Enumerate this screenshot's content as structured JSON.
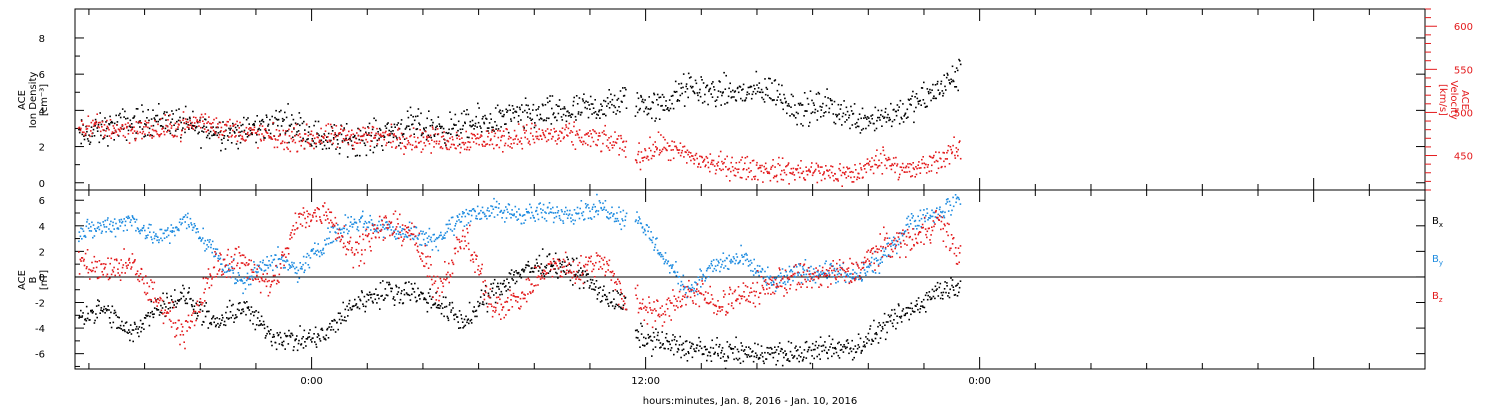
{
  "chart_data": [
    {
      "type": "scatter",
      "panel": "top",
      "ylabel": [
        "ACE",
        "Ion Density",
        "[cm⁻³]"
      ],
      "ylim": [
        -0.4,
        9.6
      ],
      "yticks": [
        0,
        2,
        4,
        6,
        8
      ],
      "y2label": [
        "ACE",
        "Velocity",
        "[km/s]"
      ],
      "y2lim": [
        410,
        620
      ],
      "y2ticks": [
        450,
        500,
        550,
        600
      ],
      "xlim": [
        -8.5,
        40.0
      ],
      "series": [
        {
          "color": "#000000",
          "axis": "left",
          "segments": [
            {
              "x": [
                -8.4,
                -7.0,
                -5.5,
                -4.0,
                -2.5,
                -1.0,
                0.5,
                2.0,
                3.5,
                5.0,
                6.5,
                8.0,
                9.5,
                11.0,
                11.3
              ],
              "y": [
                2.6,
                3.2,
                3.6,
                3.0,
                2.8,
                3.5,
                2.4,
                2.5,
                3.2,
                3.0,
                3.5,
                3.8,
                4.0,
                4.4,
                4.8
              ]
            },
            {
              "x": [
                11.6,
                12.5,
                13.5,
                14.5,
                15.5,
                16.5,
                17.5,
                18.5,
                19.5,
                20.5,
                21.5,
                22.5,
                23.3
              ],
              "y": [
                4.5,
                4.2,
                5.3,
                5.0,
                5.0,
                5.2,
                4.0,
                4.3,
                3.6,
                3.7,
                4.2,
                5.2,
                6.1
              ]
            }
          ]
        },
        {
          "color": "#e31a1c",
          "axis": "right",
          "segments": [
            {
              "x": [
                -8.4,
                -7.0,
                -5.5,
                -4.0,
                -2.5,
                -1.0,
                0.5,
                2.0,
                3.5,
                5.0,
                6.5,
                8.0,
                9.5,
                11.0,
                11.3
              ],
              "y": [
                485,
                482,
                480,
                490,
                478,
                470,
                472,
                474,
                470,
                468,
                470,
                475,
                473,
                465,
                462
              ]
            },
            {
              "x": [
                11.6,
                12.5,
                13.5,
                14.5,
                15.5,
                16.5,
                17.5,
                18.5,
                19.5,
                20.5,
                21.5,
                22.5,
                23.3
              ],
              "y": [
                448,
                462,
                450,
                440,
                436,
                434,
                432,
                431,
                429,
                448,
                432,
                445,
                460
              ]
            }
          ]
        }
      ]
    },
    {
      "type": "scatter",
      "panel": "bottom",
      "ylabel": [
        "ACE",
        "B",
        "[nT]"
      ],
      "ylim": [
        -7.2,
        6.8
      ],
      "yticks": [
        -6,
        -4,
        -2,
        0,
        2,
        4,
        6
      ],
      "zero_line": true,
      "xlim": [
        -8.5,
        40.0
      ],
      "x_tick_labels": [
        {
          "x": 0,
          "label": "0:00"
        },
        {
          "x": 12,
          "label": "12:00"
        },
        {
          "x": 24,
          "label": "0:00"
        }
      ],
      "xlabel": "hours:minutes, Jan.  8, 2016 - Jan. 10, 2016",
      "legend": [
        "B",
        "B",
        "B"
      ],
      "legend_sub": [
        "x",
        "y",
        "z"
      ],
      "series": [
        {
          "name": "Bx",
          "color": "#000000",
          "segments": [
            {
              "x": [
                -8.4,
                -7.5,
                -6.5,
                -5.5,
                -4.5,
                -3.5,
                -2.5,
                -1.5,
                -0.5,
                0.5,
                1.5,
                2.5,
                3.5,
                4.5,
                5.5,
                6.5,
                7.5,
                8.5,
                9.5,
                10.5,
                11.3
              ],
              "y": [
                -3.0,
                -2.5,
                -4.5,
                -2.0,
                -1.5,
                -3.8,
                -2.2,
                -4.5,
                -5.0,
                -4.5,
                -2.0,
                -1.2,
                -1.0,
                -2.0,
                -3.5,
                -1.0,
                0.5,
                1.2,
                0.5,
                -1.5,
                -2.2
              ]
            },
            {
              "x": [
                11.6,
                12.5,
                13.5,
                14.5,
                15.5,
                16.5,
                17.5,
                18.5,
                19.5,
                20.5,
                21.5,
                22.5,
                23.3
              ],
              "y": [
                -4.5,
                -5.0,
                -5.5,
                -5.8,
                -5.9,
                -5.9,
                -6.0,
                -5.5,
                -5.5,
                -4.0,
                -2.5,
                -1.0,
                -0.5
              ]
            }
          ]
        },
        {
          "name": "By",
          "color": "#1f8ce0",
          "segments": [
            {
              "x": [
                -8.4,
                -7.5,
                -6.5,
                -5.5,
                -4.5,
                -3.5,
                -2.5,
                -1.5,
                -0.5,
                0.5,
                1.5,
                2.5,
                3.5,
                4.5,
                5.5,
                6.5,
                7.5,
                8.5,
                9.5,
                10.5,
                11.3
              ],
              "y": [
                3.5,
                4.0,
                4.5,
                3.0,
                4.5,
                2.0,
                -0.5,
                1.5,
                0.5,
                3.0,
                4.5,
                4.0,
                3.5,
                3.0,
                5.0,
                5.2,
                5.0,
                5.0,
                5.2,
                5.5,
                4.5
              ]
            },
            {
              "x": [
                11.6,
                12.5,
                13.5,
                14.5,
                15.5,
                16.5,
                17.5,
                18.5,
                19.5,
                20.5,
                21.5,
                22.5,
                23.3
              ],
              "y": [
                5.0,
                2.0,
                -1.0,
                1.0,
                1.5,
                -0.5,
                0.5,
                0.5,
                0.0,
                1.5,
                4.5,
                5.0,
                6.5
              ]
            }
          ]
        },
        {
          "name": "Bz",
          "color": "#e31a1c",
          "segments": [
            {
              "x": [
                -8.4,
                -7.5,
                -6.5,
                -5.5,
                -4.5,
                -3.5,
                -2.5,
                -1.5,
                -0.5,
                0.5,
                1.5,
                2.5,
                3.5,
                4.5,
                5.5,
                6.5,
                7.5,
                8.5,
                9.5,
                10.5,
                11.3
              ],
              "y": [
                1.5,
                0.5,
                1.0,
                -2.0,
                -4.5,
                1.0,
                1.5,
                -1.0,
                4.5,
                5.2,
                2.0,
                4.0,
                3.8,
                -1.0,
                3.5,
                -2.5,
                -1.5,
                1.0,
                0.5,
                1.5,
                -2.5
              ]
            },
            {
              "x": [
                11.6,
                12.5,
                13.5,
                14.5,
                15.5,
                16.5,
                17.5,
                18.5,
                19.5,
                20.5,
                21.5,
                22.5,
                23.3
              ],
              "y": [
                -1.5,
                -3.0,
                -1.0,
                -2.0,
                -1.5,
                -0.5,
                0.0,
                0.2,
                0.5,
                2.5,
                3.0,
                4.5,
                1.5
              ]
            }
          ]
        }
      ]
    }
  ]
}
